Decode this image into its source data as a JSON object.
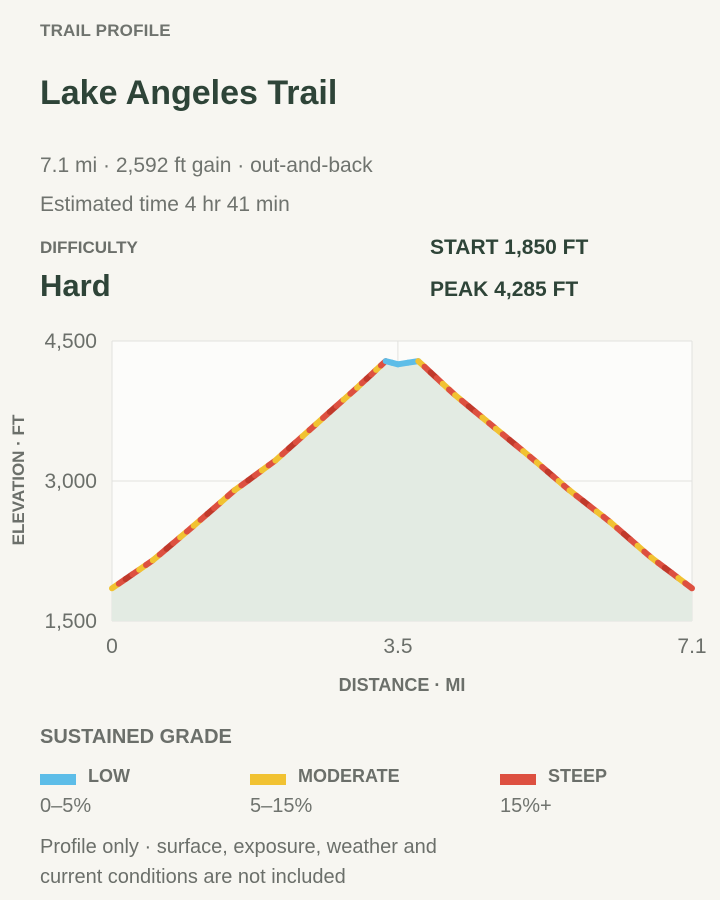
{
  "header": {
    "eyebrow": "TRAIL PROFILE",
    "title": "Lake Angeles Trail",
    "meta_line": "7.1 mi · 2,592 ft gain · out-and-back",
    "estimate_line": "Estimated time 4 hr 41 min"
  },
  "difficulty": {
    "label": "DIFFICULTY",
    "value": "Hard"
  },
  "stats": {
    "start": "START 1,850 FT",
    "peak": "PEAK 4,285 FT"
  },
  "legend": {
    "title": "SUSTAINED GRADE",
    "items": [
      {
        "name": "LOW",
        "range": "0–5%",
        "color": "#5dbde8"
      },
      {
        "name": "MODERATE",
        "range": "5–15%",
        "color": "#f1c232"
      },
      {
        "name": "STEEP",
        "range": "15%+",
        "color": "#dd5040"
      }
    ]
  },
  "footnote": "Profile only · surface, exposure, weather and current conditions are not included",
  "colors": {
    "low": "#5dbde8",
    "moderate": "#f1c232",
    "steep": "#dd5040",
    "steep_dark": "#c0392b",
    "area": "#e3ebe3",
    "plot_bg": "#fcfcfa",
    "grid": "#e2e2de"
  },
  "chart_data": {
    "type": "line",
    "xlabel": "DISTANCE · MI",
    "ylabel": "ELEVATION · FT",
    "xlim": [
      0,
      7.1
    ],
    "ylim": [
      1500,
      4500
    ],
    "xticks": [
      {
        "value": 0,
        "label": "0"
      },
      {
        "value": 3.5,
        "label": "3.5"
      },
      {
        "value": 7.1,
        "label": "7.1"
      }
    ],
    "yticks": [
      {
        "value": 1500,
        "label": "1,500"
      },
      {
        "value": 3000,
        "label": "3,000"
      },
      {
        "value": 4500,
        "label": "4,500"
      }
    ],
    "grid": true,
    "series": [
      {
        "x": [
          0,
          0.5,
          1.0,
          1.5,
          2.0,
          2.5,
          3.0,
          3.35,
          3.5,
          3.75,
          4.2,
          4.7,
          5.2,
          5.6,
          6.1,
          6.6,
          7.1
        ],
        "y": [
          1850,
          2150,
          2520,
          2900,
          3220,
          3610,
          4000,
          4285,
          4250,
          4285,
          3920,
          3560,
          3200,
          2900,
          2560,
          2180,
          1850
        ]
      }
    ]
  }
}
